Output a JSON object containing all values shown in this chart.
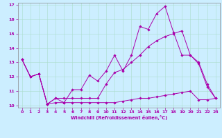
{
  "xlabel": "Windchill (Refroidissement éolien,°C)",
  "background_color": "#cceeff",
  "grid_color": "#aaddcc",
  "line_color": "#aa00aa",
  "xlim": [
    -0.5,
    23.5
  ],
  "ylim": [
    9.85,
    17.15
  ],
  "xticks": [
    0,
    1,
    2,
    3,
    4,
    5,
    6,
    7,
    8,
    9,
    10,
    11,
    12,
    13,
    14,
    15,
    16,
    17,
    18,
    19,
    20,
    21,
    22,
    23
  ],
  "yticks": [
    10,
    11,
    12,
    13,
    14,
    15,
    16,
    17
  ],
  "line1_x": [
    0,
    1,
    2,
    3,
    4,
    5,
    6,
    7,
    8,
    9,
    10,
    11,
    12,
    13,
    14,
    15,
    16,
    17,
    18,
    19,
    20,
    21,
    22,
    23
  ],
  "line1_y": [
    13.2,
    12.0,
    12.2,
    10.1,
    10.5,
    10.2,
    11.1,
    11.1,
    12.1,
    11.7,
    12.4,
    13.5,
    12.4,
    13.5,
    15.5,
    15.3,
    16.4,
    16.9,
    15.1,
    13.5,
    13.5,
    12.9,
    11.3,
    10.5
  ],
  "line2_x": [
    0,
    1,
    2,
    3,
    4,
    5,
    6,
    7,
    8,
    9,
    10,
    11,
    12,
    13,
    14,
    15,
    16,
    17,
    18,
    19,
    20,
    21,
    22,
    23
  ],
  "line2_y": [
    13.2,
    12.0,
    12.2,
    10.1,
    10.2,
    10.2,
    10.2,
    10.2,
    10.2,
    10.2,
    10.2,
    10.2,
    10.3,
    10.4,
    10.5,
    10.5,
    10.6,
    10.7,
    10.8,
    10.9,
    11.0,
    10.4,
    10.4,
    10.5
  ],
  "line3_x": [
    0,
    1,
    2,
    3,
    4,
    5,
    6,
    7,
    8,
    9,
    10,
    11,
    12,
    13,
    14,
    15,
    16,
    17,
    18,
    19,
    20,
    21,
    22,
    23
  ],
  "line3_y": [
    13.2,
    12.0,
    12.2,
    10.1,
    10.5,
    10.5,
    10.5,
    10.5,
    10.5,
    10.5,
    11.5,
    12.3,
    12.5,
    13.0,
    13.5,
    14.1,
    14.5,
    14.8,
    15.0,
    15.2,
    13.5,
    13.0,
    11.5,
    10.5
  ]
}
